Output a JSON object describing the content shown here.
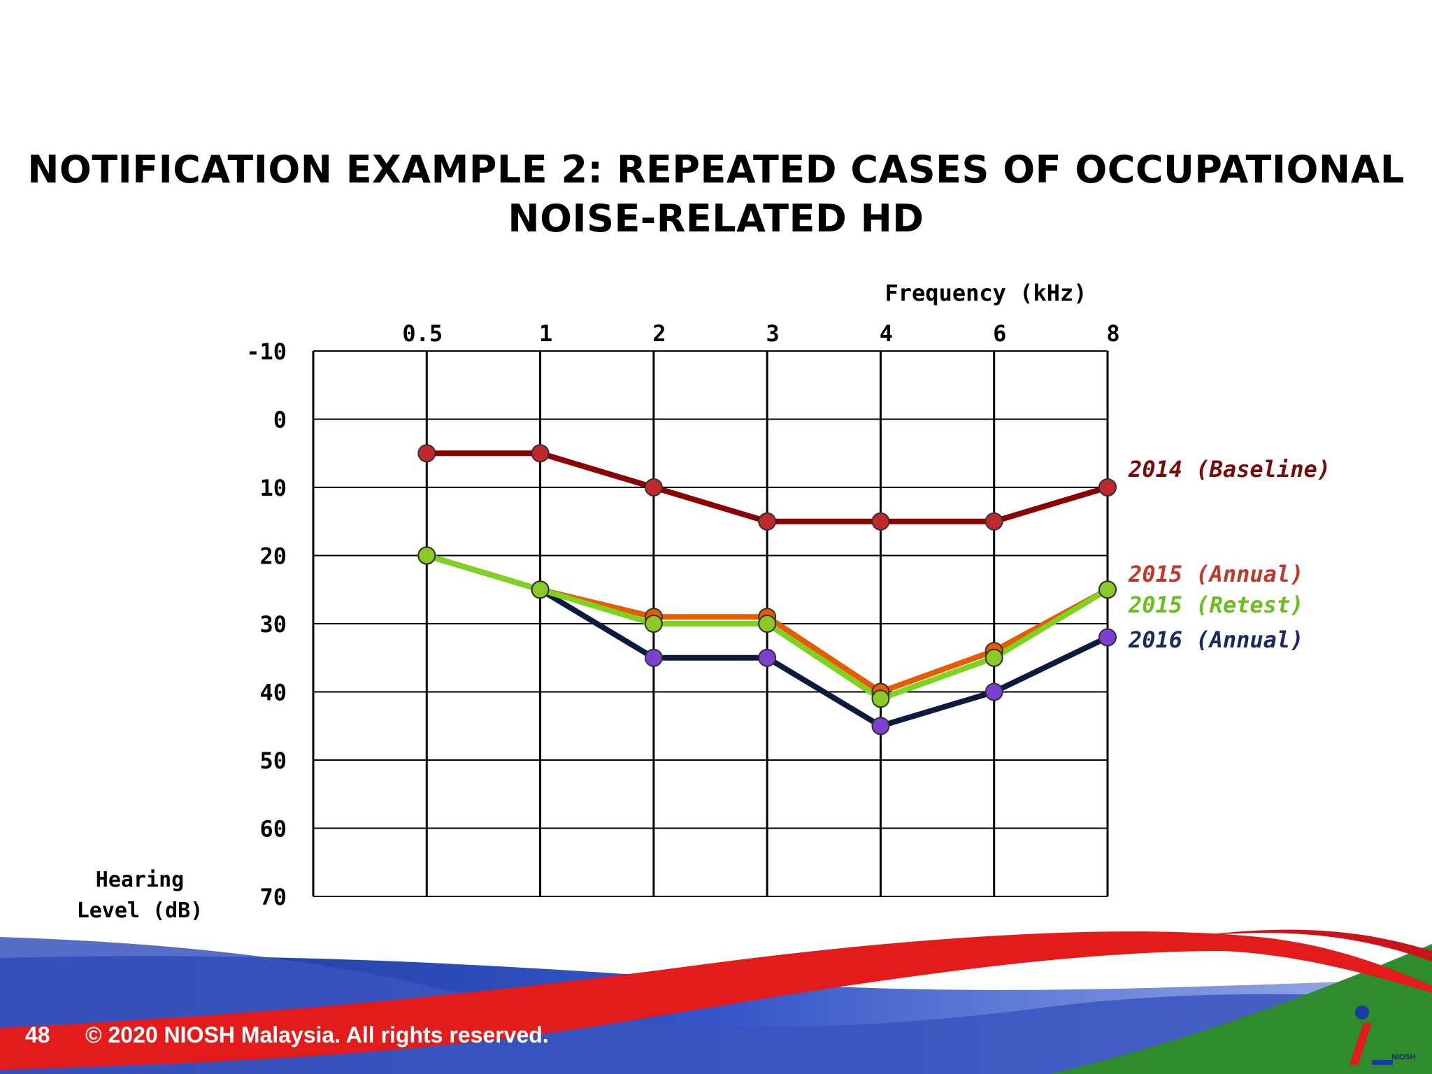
{
  "slide": {
    "title_line1": "NOTIFICATION EXAMPLE 2: REPEATED CASES OF OCCUPATIONAL",
    "title_line2": "NOISE-RELATED HD",
    "slide_number": "48",
    "copyright": "© 2020 NIOSH Malaysia. All rights reserved.",
    "logo_text": "NIOSH"
  },
  "chart_data": {
    "type": "line",
    "title": "",
    "xlabel": "Frequency (kHz)",
    "ylabel_line1": "Hearing",
    "ylabel_line2": "Level (dB)",
    "categories": [
      "0.5",
      "1",
      "2",
      "3",
      "4",
      "6",
      "8"
    ],
    "yticks": [
      "-10",
      "0",
      "10",
      "20",
      "30",
      "40",
      "50",
      "60",
      "70"
    ],
    "ylim": [
      -10,
      70
    ],
    "y_inverted": true,
    "grid": true,
    "legend_position": "right-labels",
    "series": [
      {
        "name": "2014 (Baseline)",
        "values": [
          5,
          5,
          10,
          15,
          15,
          15,
          10
        ],
        "color": "#8b0000",
        "marker": "#c0282a",
        "label_color": "#7a0a0a"
      },
      {
        "name": "2015 (Annual)",
        "values": [
          20,
          25,
          29,
          29,
          40,
          34,
          25
        ],
        "color": "#e65c00",
        "marker": "#e65c00",
        "label_color": "#c0392b"
      },
      {
        "name": "2015 (Retest)",
        "values": [
          20,
          25,
          30,
          30,
          41,
          35,
          25
        ],
        "color": "#7ed321",
        "marker": "#8ac926",
        "label_color": "#6abf1f"
      },
      {
        "name": "2016 (Annual)",
        "values": [
          20,
          25,
          35,
          35,
          45,
          40,
          32
        ],
        "color": "#0b1a3f",
        "marker": "#7b3fd1",
        "label_color": "#1a2a5c"
      }
    ]
  }
}
